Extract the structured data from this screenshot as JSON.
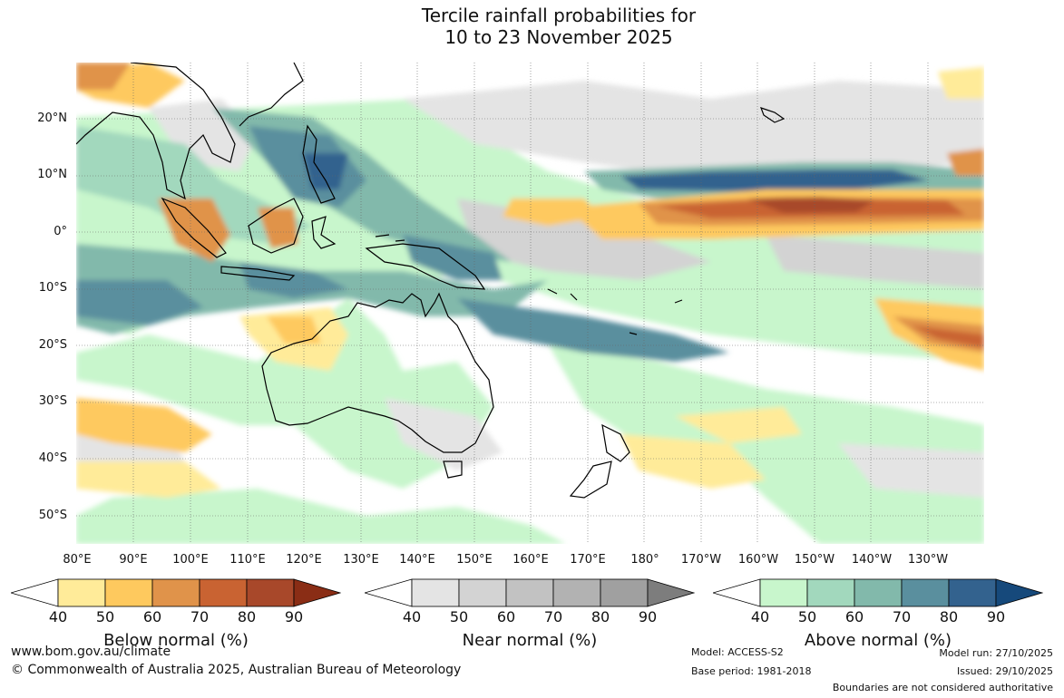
{
  "title": {
    "line1": "Tercile rainfall probabilities for",
    "line2": "10 to 23 November 2025"
  },
  "map": {
    "latitude_labels": [
      "20°N",
      "10°N",
      "0°",
      "10°S",
      "20°S",
      "30°S",
      "40°S",
      "50°S"
    ],
    "longitude_labels": [
      "80°E",
      "90°E",
      "100°E",
      "110°E",
      "120°E",
      "130°E",
      "140°E",
      "150°E",
      "160°E",
      "170°E",
      "180°",
      "170°W",
      "160°W",
      "150°W",
      "140°W",
      "130°W"
    ]
  },
  "colorbars": [
    {
      "title": "Below normal (%)",
      "ticks": [
        "40",
        "50",
        "60",
        "70",
        "80",
        "90"
      ],
      "colors": [
        "#ffffff",
        "#ffeb99",
        "#fec95e",
        "#e0934a",
        "#c96332",
        "#a8482a",
        "#8a2d15"
      ]
    },
    {
      "title": "Near normal (%)",
      "ticks": [
        "40",
        "50",
        "60",
        "70",
        "80",
        "90"
      ],
      "colors": [
        "#ffffff",
        "#e4e4e4",
        "#d3d3d3",
        "#c2c2c2",
        "#b2b2b2",
        "#a0a0a0",
        "#7d7d7d"
      ]
    },
    {
      "title": "Above normal (%)",
      "ticks": [
        "40",
        "50",
        "60",
        "70",
        "80",
        "90"
      ],
      "colors": [
        "#ffffff",
        "#c8f6cc",
        "#a2d8bd",
        "#82b9ab",
        "#5a8f9e",
        "#33628e",
        "#16497b"
      ]
    }
  ],
  "footer": {
    "website": "www.bom.gov.au/climate",
    "copyright": "© Commonwealth of Australia 2025, Australian Bureau of Meteorology",
    "model": "Model: ACCESS-S2",
    "base_period": "Base period: 1981-2018",
    "model_run": "Model run: 27/10/2025",
    "issued": "Issued: 29/10/2025",
    "disclaimer": "Boundaries are not considered authoritative"
  }
}
